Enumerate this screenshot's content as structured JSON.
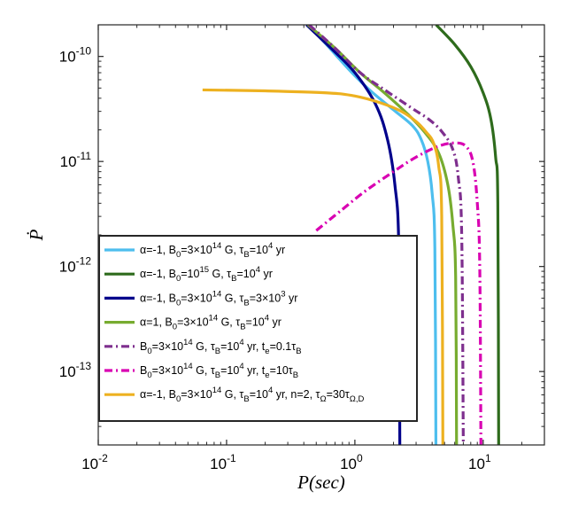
{
  "chart_data": {
    "type": "line",
    "xlabel": "P(sec)",
    "ylabel": "Ṗ",
    "xscale": "log",
    "yscale": "log",
    "xlim": [
      0.01,
      30
    ],
    "ylim": [
      2e-14,
      2e-10
    ],
    "x_ticks": [
      {
        "value": 0.01,
        "base": "10",
        "exp": "-2"
      },
      {
        "value": 0.1,
        "base": "10",
        "exp": "-1"
      },
      {
        "value": 1,
        "base": "10",
        "exp": "0"
      },
      {
        "value": 10,
        "base": "10",
        "exp": "1"
      }
    ],
    "y_ticks": [
      {
        "value": 1e-13,
        "base": "10",
        "exp": "-13"
      },
      {
        "value": 1e-12,
        "base": "10",
        "exp": "-12"
      },
      {
        "value": 1e-11,
        "base": "10",
        "exp": "-11"
      },
      {
        "value": 1e-10,
        "base": "10",
        "exp": "-10"
      }
    ],
    "grid": false,
    "legend_position": "lower-left",
    "series": [
      {
        "name": "α=-1, B0=3×10^14 G, τB=10^4 yr",
        "color": "#4DBEEE",
        "dash": "solid",
        "points": [
          [
            0.43,
            2e-10
          ],
          [
            0.6,
            1.3e-10
          ],
          [
            0.9,
            7.5e-11
          ],
          [
            1.3,
            4.8e-11
          ],
          [
            2.0,
            3.1e-11
          ],
          [
            2.8,
            2.2e-11
          ],
          [
            3.3,
            1.6e-11
          ],
          [
            3.7,
            1e-11
          ],
          [
            4.0,
            5e-12
          ],
          [
            4.2,
            1.5e-12
          ],
          [
            4.28,
            2e-14
          ]
        ]
      },
      {
        "name": "α=-1, B0=10^15 G, τB=10^4 yr",
        "color": "#2E6B1C",
        "dash": "solid",
        "points": [
          [
            4.3,
            2e-10
          ],
          [
            6.0,
            1.3e-10
          ],
          [
            8.0,
            8e-11
          ],
          [
            10.0,
            4.5e-11
          ],
          [
            11.5,
            2.5e-11
          ],
          [
            12.5,
            1.1e-11
          ],
          [
            13.0,
            4e-12
          ],
          [
            13.2,
            2e-14
          ]
        ]
      },
      {
        "name": "α=-1, B0=3×10^14 G, τB=3×10^3 yr",
        "color": "#00008B",
        "dash": "solid",
        "points": [
          [
            0.42,
            2e-10
          ],
          [
            0.65,
            1.2e-10
          ],
          [
            1.0,
            7e-11
          ],
          [
            1.45,
            3.5e-11
          ],
          [
            1.8,
            1.6e-11
          ],
          [
            2.05,
            6e-12
          ],
          [
            2.2,
            1.5e-12
          ],
          [
            2.24,
            2e-14
          ]
        ]
      },
      {
        "name": "α=1, B0=3×10^14 G, τB=10^4 yr",
        "color": "#77AC30",
        "dash": "solid",
        "points": [
          [
            0.43,
            2e-10
          ],
          [
            0.7,
            1.2e-10
          ],
          [
            1.1,
            7e-11
          ],
          [
            1.7,
            4.5e-11
          ],
          [
            2.6,
            2.8e-11
          ],
          [
            3.5,
            1.9e-11
          ],
          [
            4.5,
            1.2e-11
          ],
          [
            5.3,
            6e-12
          ],
          [
            5.8,
            2.5e-12
          ],
          [
            6.1,
            8e-13
          ],
          [
            6.2,
            2e-14
          ]
        ]
      },
      {
        "name": "B0=3×10^14 G, τB=10^4 yr, te=0.1τB",
        "color": "#7E2F8E",
        "dash": "dashdot",
        "points": [
          [
            0.44,
            2e-10
          ],
          [
            0.7,
            1.2e-10
          ],
          [
            1.1,
            7e-11
          ],
          [
            1.8,
            4.6e-11
          ],
          [
            2.8,
            3.2e-11
          ],
          [
            3.8,
            2.5e-11
          ],
          [
            4.8,
            1.9e-11
          ],
          [
            5.8,
            1.3e-11
          ],
          [
            6.4,
            7e-12
          ],
          [
            6.8,
            2e-12
          ],
          [
            7.0,
            2e-14
          ]
        ]
      },
      {
        "name": "B0=3×10^14 G, τB=10^4 yr, te=10τB",
        "color": "#D900B2",
        "dash": "dashdot",
        "points": [
          [
            0.5,
            2.2e-12
          ],
          [
            0.8,
            3.5e-12
          ],
          [
            1.2,
            5.2e-12
          ],
          [
            2.0,
            8e-12
          ],
          [
            3.0,
            1.1e-11
          ],
          [
            4.5,
            1.4e-11
          ],
          [
            6.0,
            1.5e-11
          ],
          [
            7.3,
            1.4e-11
          ],
          [
            8.3,
            1e-11
          ],
          [
            9.0,
            4e-12
          ],
          [
            9.4,
            1e-12
          ],
          [
            9.6,
            2e-14
          ]
        ]
      },
      {
        "name": "α=-1, B0=3×10^14 G, τB=10^4 yr, n=2, τΩ=30τΩ,D",
        "color": "#EDB120",
        "dash": "solid",
        "points": [
          [
            0.065,
            4.8e-11
          ],
          [
            0.2,
            4.7e-11
          ],
          [
            0.6,
            4.5e-11
          ],
          [
            1.0,
            4.2e-11
          ],
          [
            1.6,
            3.6e-11
          ],
          [
            2.3,
            3e-11
          ],
          [
            3.0,
            2.4e-11
          ],
          [
            3.6,
            1.9e-11
          ],
          [
            4.1,
            1.5e-11
          ],
          [
            4.5,
            9e-12
          ],
          [
            4.75,
            3e-12
          ],
          [
            4.85,
            2e-14
          ]
        ]
      }
    ]
  },
  "legend": {
    "entries": [
      [
        {
          "t": "α=-1, B",
          "s": "n"
        },
        {
          "t": "0",
          "s": "sub"
        },
        {
          "t": "=3×10",
          "s": "n"
        },
        {
          "t": "14",
          "s": "sup"
        },
        {
          "t": " G, τ",
          "s": "n"
        },
        {
          "t": "B",
          "s": "sub"
        },
        {
          "t": "=10",
          "s": "n"
        },
        {
          "t": "4",
          "s": "sup"
        },
        {
          "t": " yr",
          "s": "n"
        }
      ],
      [
        {
          "t": "α=-1, B",
          "s": "n"
        },
        {
          "t": "0",
          "s": "sub"
        },
        {
          "t": "=10",
          "s": "n"
        },
        {
          "t": "15",
          "s": "sup"
        },
        {
          "t": " G, τ",
          "s": "n"
        },
        {
          "t": "B",
          "s": "sub"
        },
        {
          "t": "=10",
          "s": "n"
        },
        {
          "t": "4",
          "s": "sup"
        },
        {
          "t": " yr",
          "s": "n"
        }
      ],
      [
        {
          "t": "α=-1, B",
          "s": "n"
        },
        {
          "t": "0",
          "s": "sub"
        },
        {
          "t": "=3×10",
          "s": "n"
        },
        {
          "t": "14",
          "s": "sup"
        },
        {
          "t": " G, τ",
          "s": "n"
        },
        {
          "t": "B",
          "s": "sub"
        },
        {
          "t": "=3×10",
          "s": "n"
        },
        {
          "t": "3",
          "s": "sup"
        },
        {
          "t": " yr",
          "s": "n"
        }
      ],
      [
        {
          "t": "α=1, B",
          "s": "n"
        },
        {
          "t": "0",
          "s": "sub"
        },
        {
          "t": "=3×10",
          "s": "n"
        },
        {
          "t": "14",
          "s": "sup"
        },
        {
          "t": " G, τ",
          "s": "n"
        },
        {
          "t": "B",
          "s": "sub"
        },
        {
          "t": "=10",
          "s": "n"
        },
        {
          "t": "4",
          "s": "sup"
        },
        {
          "t": " yr",
          "s": "n"
        }
      ],
      [
        {
          "t": "B",
          "s": "n"
        },
        {
          "t": "0",
          "s": "sub"
        },
        {
          "t": "=3×10",
          "s": "n"
        },
        {
          "t": "14",
          "s": "sup"
        },
        {
          "t": " G, τ",
          "s": "n"
        },
        {
          "t": "B",
          "s": "sub"
        },
        {
          "t": "=10",
          "s": "n"
        },
        {
          "t": "4",
          "s": "sup"
        },
        {
          "t": " yr, t",
          "s": "n"
        },
        {
          "t": "e",
          "s": "sub"
        },
        {
          "t": "=0.1τ",
          "s": "n"
        },
        {
          "t": "B",
          "s": "sub"
        }
      ],
      [
        {
          "t": "B",
          "s": "n"
        },
        {
          "t": "0",
          "s": "sub"
        },
        {
          "t": "=3×10",
          "s": "n"
        },
        {
          "t": "14",
          "s": "sup"
        },
        {
          "t": " G, τ",
          "s": "n"
        },
        {
          "t": "B",
          "s": "sub"
        },
        {
          "t": "=10",
          "s": "n"
        },
        {
          "t": "4",
          "s": "sup"
        },
        {
          "t": " yr, t",
          "s": "n"
        },
        {
          "t": "e",
          "s": "sub"
        },
        {
          "t": "=10τ",
          "s": "n"
        },
        {
          "t": "B",
          "s": "sub"
        }
      ],
      [
        {
          "t": "α=-1, B",
          "s": "n"
        },
        {
          "t": "0",
          "s": "sub"
        },
        {
          "t": "=3×10",
          "s": "n"
        },
        {
          "t": "14",
          "s": "sup"
        },
        {
          "t": " G, τ",
          "s": "n"
        },
        {
          "t": "B",
          "s": "sub"
        },
        {
          "t": "=10",
          "s": "n"
        },
        {
          "t": "4",
          "s": "sup"
        },
        {
          "t": " yr, n=2, τ",
          "s": "n"
        },
        {
          "t": "Ω",
          "s": "sub"
        },
        {
          "t": "=30τ",
          "s": "n"
        },
        {
          "t": "Ω,D",
          "s": "sub"
        }
      ]
    ]
  }
}
